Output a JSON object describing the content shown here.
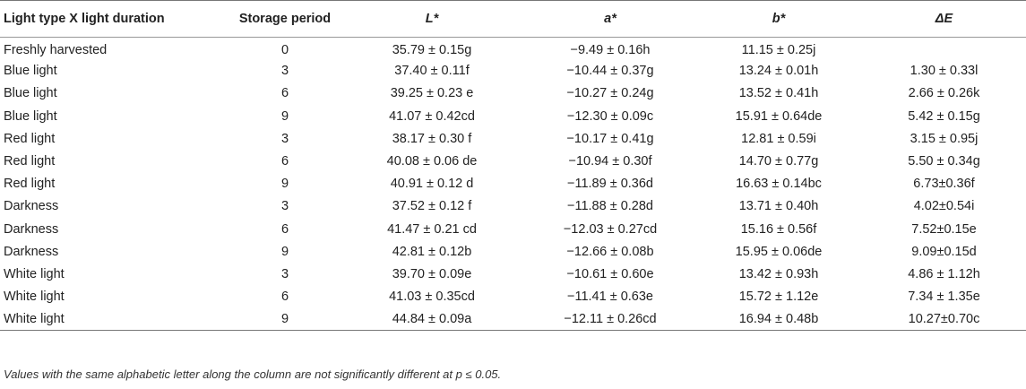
{
  "table": {
    "headers": [
      "Light type X light duration",
      "Storage period",
      "L*",
      "a*",
      "b*",
      "ΔE"
    ],
    "rows": [
      [
        "Freshly harvested",
        "0",
        "35.79 ± 0.15g",
        "−9.49 ± 0.16h",
        "11.15 ± 0.25j",
        ""
      ],
      [
        "Blue light",
        "3",
        "37.40 ± 0.11f",
        "−10.44 ± 0.37g",
        "13.24 ± 0.01h",
        "1.30 ± 0.33l"
      ],
      [
        "Blue light",
        "6",
        "39.25 ± 0.23 e",
        "−10.27 ± 0.24g",
        "13.52 ± 0.41h",
        "2.66 ± 0.26k"
      ],
      [
        "Blue light",
        "9",
        "41.07 ± 0.42cd",
        "−12.30 ± 0.09c",
        "15.91 ± 0.64de",
        "5.42 ± 0.15g"
      ],
      [
        "Red light",
        "3",
        "38.17 ± 0.30 f",
        "−10.17 ± 0.41g",
        "12.81 ± 0.59i",
        "3.15 ± 0.95j"
      ],
      [
        "Red light",
        "6",
        "40.08 ± 0.06 de",
        "−10.94 ± 0.30f",
        "14.70 ± 0.77g",
        "5.50 ± 0.34g"
      ],
      [
        "Red light",
        "9",
        "40.91 ± 0.12 d",
        "−11.89 ± 0.36d",
        "16.63 ± 0.14bc",
        "6.73±0.36f"
      ],
      [
        "Darkness",
        "3",
        "37.52 ± 0.12 f",
        "−11.88 ± 0.28d",
        "13.71 ± 0.40h",
        "4.02±0.54i"
      ],
      [
        "Darkness",
        "6",
        "41.47 ± 0.21 cd",
        "−12.03 ± 0.27cd",
        "15.16 ± 0.56f",
        "7.52±0.15e"
      ],
      [
        "Darkness",
        "9",
        "42.81 ± 0.12b",
        "−12.66 ± 0.08b",
        "15.95 ± 0.06de",
        "9.09±0.15d"
      ],
      [
        "White light",
        "3",
        "39.70 ± 0.09e",
        "−10.61 ± 0.60e",
        "13.42 ± 0.93h",
        "4.86 ± 1.12h"
      ],
      [
        "White light",
        "6",
        "41.03 ± 0.35cd",
        "−11.41 ± 0.63e",
        "15.72 ± 1.12e",
        "7.34 ± 1.35e"
      ],
      [
        "White light",
        "9",
        "44.84 ± 0.09a",
        "−12.11 ± 0.26cd",
        "16.94 ± 0.48b",
        "10.27±0.70c"
      ]
    ],
    "footnote": "Values with the same alphabetic letter along the column are not significantly different at p ≤ 0.05."
  }
}
